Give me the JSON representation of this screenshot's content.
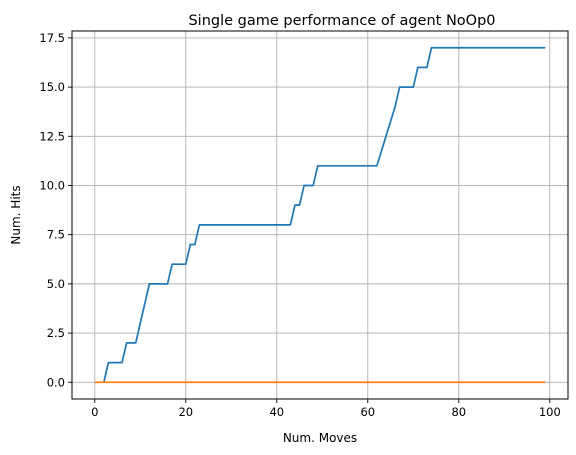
{
  "chart_data": {
    "type": "line",
    "title": "Single game performance of agent NoOp0",
    "xlabel": "Num. Moves",
    "ylabel": "Num. Hits",
    "xlim": [
      -5,
      104
    ],
    "ylim": [
      -0.85,
      17.85
    ],
    "xticks": [
      0,
      20,
      40,
      60,
      80,
      100
    ],
    "yticks": [
      0.0,
      2.5,
      5.0,
      7.5,
      10.0,
      12.5,
      15.0,
      17.5
    ],
    "xtick_labels": [
      "0",
      "20",
      "40",
      "60",
      "80",
      "100"
    ],
    "ytick_labels": [
      "0.0",
      "2.5",
      "5.0",
      "7.5",
      "10.0",
      "12.5",
      "15.0",
      "17.5"
    ],
    "grid": true,
    "series": [
      {
        "color": "#1f77b4",
        "x": [
          2,
          3,
          6,
          7,
          9,
          12,
          16,
          17,
          20,
          21,
          22,
          23,
          43,
          44,
          45,
          46,
          47,
          48,
          49,
          62,
          66,
          67,
          70,
          71,
          73,
          74,
          99
        ],
        "y": [
          0,
          1,
          1,
          2,
          2,
          5,
          5,
          6,
          6,
          7,
          7,
          8,
          8,
          9,
          9,
          10,
          10,
          10,
          11,
          11,
          14,
          15,
          15,
          16,
          16,
          17,
          17
        ]
      },
      {
        "color": "#ff7f0e",
        "x": [
          0,
          99
        ],
        "y": [
          0,
          0
        ]
      }
    ]
  }
}
